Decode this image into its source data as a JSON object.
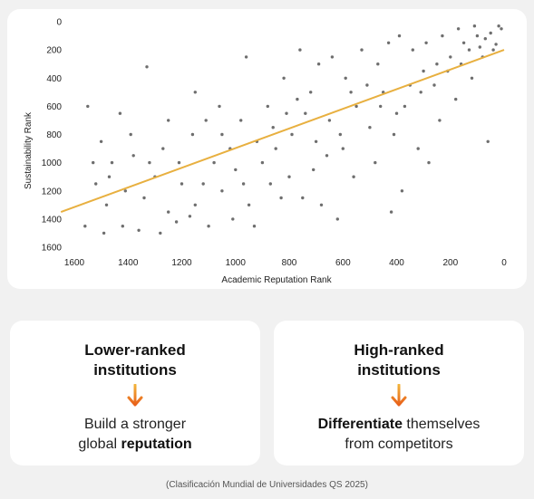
{
  "chart_data": {
    "type": "scatter",
    "title": "",
    "xlabel": "Academic Reputation Rank",
    "ylabel": "Sustainability Rank",
    "xlim": [
      1600,
      0
    ],
    "ylim": [
      0,
      1600
    ],
    "x_reversed": true,
    "y_reversed": true,
    "x_ticks": [
      1600,
      1400,
      1200,
      1000,
      800,
      600,
      400,
      200,
      0
    ],
    "y_ticks": [
      0,
      200,
      400,
      600,
      800,
      1000,
      1200,
      1400,
      1600
    ],
    "grid": false,
    "point_color": "#6e6e6e",
    "trend_line": {
      "color": "#e8b040",
      "points": [
        [
          1650,
          1350
        ],
        [
          0,
          200
        ]
      ]
    },
    "series": [
      {
        "points": [
          [
            1520,
            1150
          ],
          [
            1480,
            1300
          ],
          [
            1410,
            1200
          ],
          [
            1340,
            1250
          ],
          [
            1500,
            850
          ],
          [
            1460,
            1000
          ],
          [
            1380,
            950
          ],
          [
            1300,
            1100
          ],
          [
            1250,
            1350
          ],
          [
            1200,
            1150
          ],
          [
            1150,
            1300
          ],
          [
            1100,
            1450
          ],
          [
            1050,
            1200
          ],
          [
            1000,
            1050
          ],
          [
            950,
            1300
          ],
          [
            900,
            1000
          ],
          [
            850,
            900
          ],
          [
            800,
            1100
          ],
          [
            750,
            1250
          ],
          [
            700,
            850
          ],
          [
            650,
            700
          ],
          [
            600,
            900
          ],
          [
            550,
            600
          ],
          [
            500,
            750
          ],
          [
            450,
            500
          ],
          [
            400,
            650
          ],
          [
            350,
            450
          ],
          [
            300,
            350
          ],
          [
            250,
            300
          ],
          [
            200,
            250
          ],
          [
            150,
            150
          ],
          [
            100,
            100
          ],
          [
            50,
            80
          ],
          [
            20,
            30
          ],
          [
            1550,
            600
          ],
          [
            1430,
            650
          ],
          [
            1330,
            320
          ],
          [
            1250,
            700
          ],
          [
            1150,
            500
          ],
          [
            1050,
            800
          ],
          [
            960,
            250
          ],
          [
            880,
            600
          ],
          [
            820,
            400
          ],
          [
            760,
            200
          ],
          [
            720,
            500
          ],
          [
            680,
            1300
          ],
          [
            620,
            1400
          ],
          [
            560,
            1100
          ],
          [
            480,
            1000
          ],
          [
            420,
            1350
          ],
          [
            380,
            1200
          ],
          [
            320,
            900
          ],
          [
            280,
            1000
          ],
          [
            240,
            700
          ],
          [
            180,
            550
          ],
          [
            120,
            400
          ],
          [
            80,
            250
          ],
          [
            60,
            850
          ],
          [
            1560,
            1450
          ],
          [
            1490,
            1500
          ],
          [
            1420,
            1450
          ],
          [
            1360,
            1480
          ],
          [
            1280,
            1500
          ],
          [
            1220,
            1420
          ],
          [
            1170,
            1380
          ],
          [
            1120,
            1150
          ],
          [
            1080,
            1000
          ],
          [
            1020,
            900
          ],
          [
            980,
            700
          ],
          [
            930,
            1450
          ],
          [
            870,
            1150
          ],
          [
            830,
            1250
          ],
          [
            790,
            800
          ],
          [
            740,
            650
          ],
          [
            690,
            300
          ],
          [
            640,
            250
          ],
          [
            590,
            400
          ],
          [
            530,
            200
          ],
          [
            470,
            300
          ],
          [
            430,
            150
          ],
          [
            390,
            100
          ],
          [
            340,
            200
          ],
          [
            290,
            150
          ],
          [
            230,
            100
          ],
          [
            170,
            50
          ],
          [
            110,
            30
          ],
          [
            70,
            120
          ],
          [
            30,
            160
          ],
          [
            10,
            50
          ],
          [
            1530,
            1000
          ],
          [
            1470,
            1100
          ],
          [
            1390,
            800
          ],
          [
            1320,
            1000
          ],
          [
            1270,
            900
          ],
          [
            1210,
            1000
          ],
          [
            1160,
            800
          ],
          [
            1110,
            700
          ],
          [
            1060,
            600
          ],
          [
            1010,
            1400
          ],
          [
            970,
            1150
          ],
          [
            920,
            850
          ],
          [
            860,
            750
          ],
          [
            810,
            650
          ],
          [
            770,
            550
          ],
          [
            710,
            1050
          ],
          [
            660,
            950
          ],
          [
            610,
            800
          ],
          [
            570,
            500
          ],
          [
            510,
            450
          ],
          [
            460,
            600
          ],
          [
            410,
            800
          ],
          [
            370,
            600
          ],
          [
            310,
            500
          ],
          [
            260,
            450
          ],
          [
            210,
            350
          ],
          [
            160,
            300
          ],
          [
            130,
            200
          ],
          [
            90,
            180
          ],
          [
            40,
            200
          ]
        ]
      }
    ]
  },
  "cards": [
    {
      "title": "Lower-ranked institutions",
      "body_plain_before": "Build a stronger global ",
      "body_bold": "reputation",
      "body_plain_after": ""
    },
    {
      "title": "High-ranked institutions",
      "body_plain_before": "",
      "body_bold": "Differentiate",
      "body_plain_after": " themselves from competitors"
    }
  ],
  "arrow_color": "#e8801a",
  "source": "(Clasificación Mundial de Universidades QS 2025)"
}
